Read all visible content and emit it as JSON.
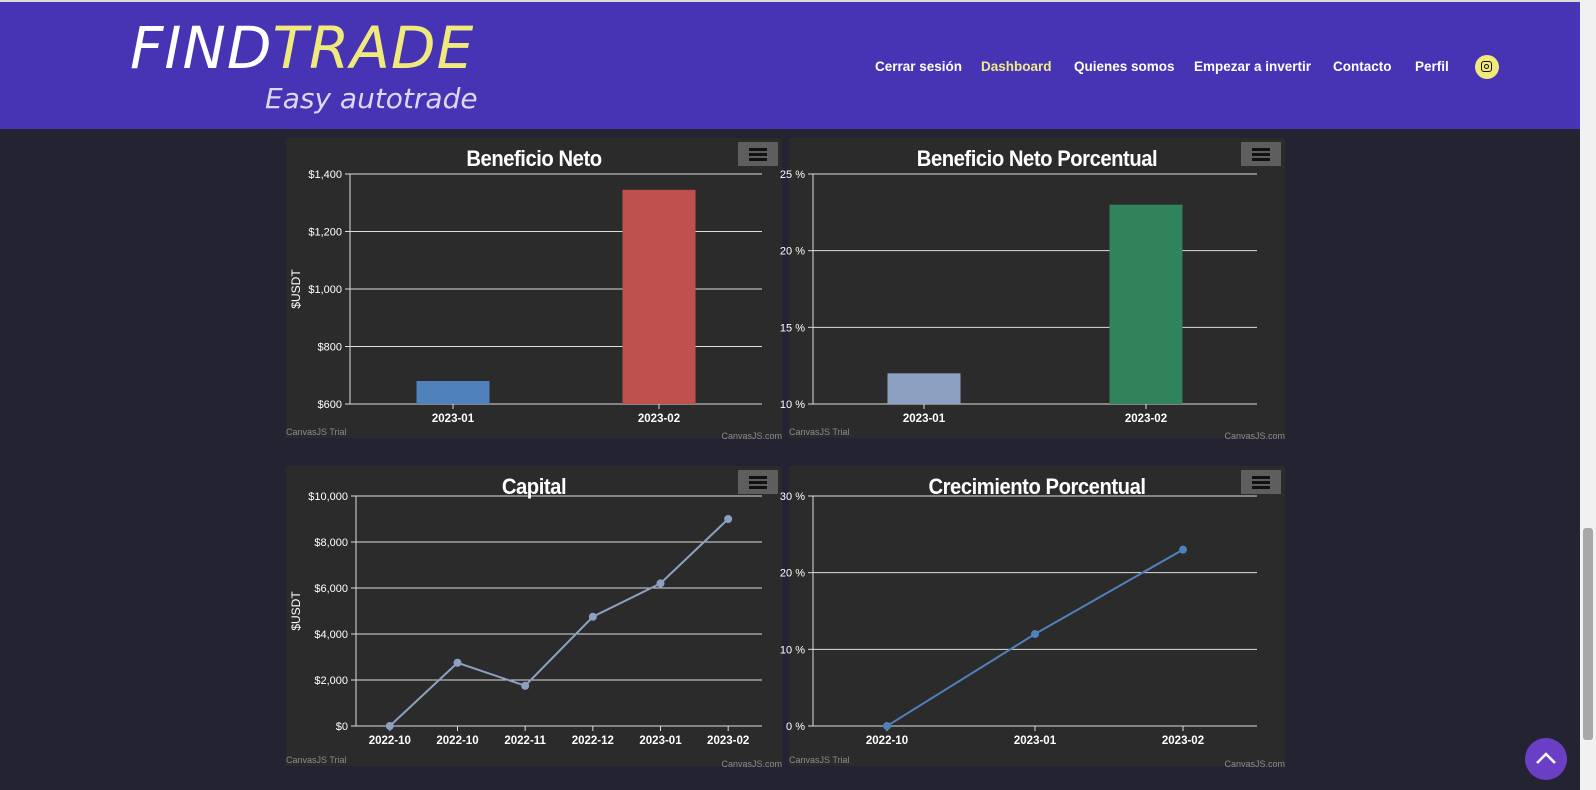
{
  "brand": {
    "logo_find": "FIND",
    "logo_trade": "TRADE",
    "tagline": "Easy autotrade"
  },
  "nav": [
    {
      "label": "Cerrar sesión"
    },
    {
      "label": "Dashboard",
      "active": true
    },
    {
      "label": "Quienes somos"
    },
    {
      "label": "Empezar a invertir"
    },
    {
      "label": "Contacto"
    },
    {
      "label": "Perfil"
    }
  ],
  "social_icon": "instagram-icon",
  "colors": {
    "header": "#4634b4",
    "accent": "#f0ea7c",
    "background": "#242331",
    "chart_bg": "#2b2b2b"
  },
  "charts": [
    {
      "title": "Beneficio Neto",
      "type": "bar",
      "ylabel": "$USDT",
      "ymin": 600,
      "ymax": 1400,
      "yticks": [
        "$1,400",
        "$1,200",
        "$1,000",
        "$800",
        "$600"
      ],
      "categories": [
        "2023-01",
        "2023-02"
      ],
      "values": [
        680,
        1345
      ],
      "bar_colors": [
        "#4f81bc",
        "#c0504e"
      ],
      "credit_left": "CanvasJS Trial",
      "credit_right": "CanvasJS.com"
    },
    {
      "title": "Beneficio Neto Porcentual",
      "type": "bar",
      "ylabel": "",
      "ymin": 10,
      "ymax": 25,
      "yticks": [
        "25 %",
        "20 %",
        "15 %",
        "10 %"
      ],
      "categories": [
        "2023-01",
        "2023-02"
      ],
      "values": [
        12,
        23
      ],
      "bar_colors": [
        "#8ca1c1",
        "#31835b"
      ],
      "credit_left": "CanvasJS Trial",
      "credit_right": "CanvasJS.com"
    },
    {
      "title": "Capital",
      "type": "line",
      "ylabel": "$USDT",
      "ymin": 0,
      "ymax": 10000,
      "yticks": [
        "$10,000",
        "$8,000",
        "$6,000",
        "$4,000",
        "$2,000",
        "$0"
      ],
      "categories": [
        "2022-10",
        "2022-10",
        "2022-11",
        "2022-12",
        "2023-01",
        "2023-02"
      ],
      "values": [
        0,
        2750,
        1750,
        4750,
        6200,
        9000
      ],
      "line_color": "#8ca1c1",
      "credit_left": "CanvasJS Trial",
      "credit_right": "CanvasJS.com"
    },
    {
      "title": "Crecimiento Porcentual",
      "type": "line",
      "ylabel": "",
      "ymin": 0,
      "ymax": 30,
      "yticks": [
        "30 %",
        "20 %",
        "10 %",
        "0 %"
      ],
      "categories": [
        "2022-10",
        "2023-01",
        "2023-02"
      ],
      "values": [
        0,
        12,
        23
      ],
      "line_color": "#4f81bc",
      "credit_left": "CanvasJS Trial",
      "credit_right": "CanvasJS.com"
    }
  ],
  "chart_data": [
    {
      "type": "bar",
      "title": "Beneficio Neto",
      "categories": [
        "2023-01",
        "2023-02"
      ],
      "values": [
        680,
        1345
      ],
      "xlabel": "",
      "ylabel": "$USDT",
      "ylim": [
        600,
        1400
      ]
    },
    {
      "type": "bar",
      "title": "Beneficio Neto Porcentual",
      "categories": [
        "2023-01",
        "2023-02"
      ],
      "values": [
        12,
        23
      ],
      "xlabel": "",
      "ylabel": "",
      "ylim": [
        10,
        25
      ]
    },
    {
      "type": "line",
      "title": "Capital",
      "categories": [
        "2022-10",
        "2022-10",
        "2022-11",
        "2022-12",
        "2023-01",
        "2023-02"
      ],
      "values": [
        0,
        2750,
        1750,
        4750,
        6200,
        9000
      ],
      "xlabel": "",
      "ylabel": "$USDT",
      "ylim": [
        0,
        10000
      ]
    },
    {
      "type": "line",
      "title": "Crecimiento Porcentual",
      "categories": [
        "2022-10",
        "2023-01",
        "2023-02"
      ],
      "values": [
        0,
        12,
        23
      ],
      "xlabel": "",
      "ylabel": "",
      "ylim": [
        0,
        30
      ]
    }
  ]
}
